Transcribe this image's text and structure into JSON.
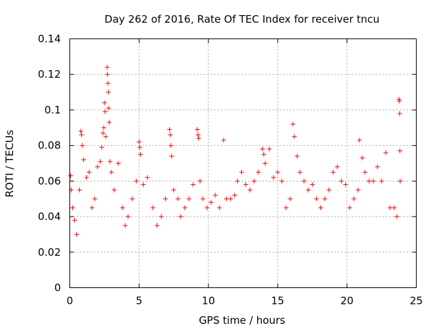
{
  "chart_data": {
    "type": "scatter",
    "title": "Day 262 of 2016, Rate Of TEC Index for receiver tncu",
    "xlabel": "GPS time / hours",
    "ylabel": "ROTI / TECUs",
    "xlim": [
      0,
      25
    ],
    "ylim": [
      0,
      0.14
    ],
    "x_ticks": [
      0,
      5,
      10,
      15,
      20,
      25
    ],
    "y_ticks": [
      0,
      0.02,
      0.04,
      0.06,
      0.08,
      0.1,
      0.12,
      0.14
    ],
    "x_tick_labels": [
      "0",
      "5",
      "10",
      "15",
      "20",
      "25"
    ],
    "y_tick_labels": [
      "0",
      "0.02",
      "0.04",
      "0.06",
      "0.08",
      "0.1",
      "0.12",
      "0.14"
    ],
    "grid": true,
    "marker": "+",
    "color": "#ff0000",
    "series": [
      {
        "name": "ROTI",
        "points": [
          [
            0.05,
            0.063
          ],
          [
            0.1,
            0.055
          ],
          [
            0.2,
            0.045
          ],
          [
            0.35,
            0.038
          ],
          [
            0.5,
            0.03
          ],
          [
            0.7,
            0.055
          ],
          [
            0.8,
            0.088
          ],
          [
            0.85,
            0.086
          ],
          [
            0.9,
            0.08
          ],
          [
            1.0,
            0.072
          ],
          [
            1.2,
            0.062
          ],
          [
            1.4,
            0.065
          ],
          [
            1.6,
            0.045
          ],
          [
            1.8,
            0.05
          ],
          [
            2.0,
            0.068
          ],
          [
            2.2,
            0.071
          ],
          [
            2.3,
            0.079
          ],
          [
            2.4,
            0.087
          ],
          [
            2.45,
            0.09
          ],
          [
            2.5,
            0.104
          ],
          [
            2.55,
            0.099
          ],
          [
            2.6,
            0.085
          ],
          [
            2.7,
            0.124
          ],
          [
            2.72,
            0.12
          ],
          [
            2.75,
            0.115
          ],
          [
            2.78,
            0.11
          ],
          [
            2.8,
            0.101
          ],
          [
            2.85,
            0.093
          ],
          [
            2.9,
            0.071
          ],
          [
            3.0,
            0.065
          ],
          [
            3.2,
            0.055
          ],
          [
            3.5,
            0.07
          ],
          [
            3.8,
            0.045
          ],
          [
            4.0,
            0.035
          ],
          [
            4.2,
            0.04
          ],
          [
            4.5,
            0.05
          ],
          [
            4.8,
            0.06
          ],
          [
            5.0,
            0.082
          ],
          [
            5.05,
            0.079
          ],
          [
            5.1,
            0.075
          ],
          [
            5.3,
            0.058
          ],
          [
            5.6,
            0.062
          ],
          [
            6.0,
            0.045
          ],
          [
            6.3,
            0.035
          ],
          [
            6.6,
            0.04
          ],
          [
            6.9,
            0.05
          ],
          [
            7.2,
            0.089
          ],
          [
            7.25,
            0.086
          ],
          [
            7.3,
            0.08
          ],
          [
            7.35,
            0.074
          ],
          [
            7.5,
            0.055
          ],
          [
            7.8,
            0.05
          ],
          [
            8.0,
            0.04
          ],
          [
            8.3,
            0.045
          ],
          [
            8.6,
            0.05
          ],
          [
            8.9,
            0.058
          ],
          [
            9.2,
            0.089
          ],
          [
            9.25,
            0.086
          ],
          [
            9.3,
            0.084
          ],
          [
            9.4,
            0.06
          ],
          [
            9.6,
            0.05
          ],
          [
            9.9,
            0.045
          ],
          [
            10.2,
            0.048
          ],
          [
            10.5,
            0.052
          ],
          [
            10.8,
            0.045
          ],
          [
            11.1,
            0.083
          ],
          [
            11.3,
            0.05
          ],
          [
            11.6,
            0.05
          ],
          [
            11.9,
            0.052
          ],
          [
            12.1,
            0.06
          ],
          [
            12.4,
            0.065
          ],
          [
            12.7,
            0.058
          ],
          [
            13.0,
            0.055
          ],
          [
            13.3,
            0.06
          ],
          [
            13.6,
            0.065
          ],
          [
            13.9,
            0.078
          ],
          [
            14.0,
            0.075
          ],
          [
            14.1,
            0.07
          ],
          [
            14.4,
            0.078
          ],
          [
            14.7,
            0.062
          ],
          [
            15.0,
            0.065
          ],
          [
            15.3,
            0.06
          ],
          [
            15.6,
            0.045
          ],
          [
            15.9,
            0.05
          ],
          [
            16.1,
            0.092
          ],
          [
            16.2,
            0.085
          ],
          [
            16.4,
            0.074
          ],
          [
            16.6,
            0.065
          ],
          [
            16.9,
            0.06
          ],
          [
            17.2,
            0.055
          ],
          [
            17.5,
            0.058
          ],
          [
            17.8,
            0.05
          ],
          [
            18.1,
            0.045
          ],
          [
            18.4,
            0.05
          ],
          [
            18.7,
            0.055
          ],
          [
            19.0,
            0.065
          ],
          [
            19.3,
            0.068
          ],
          [
            19.6,
            0.06
          ],
          [
            19.9,
            0.058
          ],
          [
            20.2,
            0.045
          ],
          [
            20.5,
            0.05
          ],
          [
            20.8,
            0.055
          ],
          [
            20.9,
            0.083
          ],
          [
            21.1,
            0.073
          ],
          [
            21.3,
            0.065
          ],
          [
            21.6,
            0.06
          ],
          [
            21.9,
            0.06
          ],
          [
            22.2,
            0.068
          ],
          [
            22.5,
            0.06
          ],
          [
            22.8,
            0.076
          ],
          [
            23.1,
            0.045
          ],
          [
            23.4,
            0.045
          ],
          [
            23.6,
            0.04
          ],
          [
            23.75,
            0.106
          ],
          [
            23.78,
            0.105
          ],
          [
            23.8,
            0.098
          ],
          [
            23.82,
            0.077
          ],
          [
            23.84,
            0.06
          ]
        ]
      }
    ]
  }
}
